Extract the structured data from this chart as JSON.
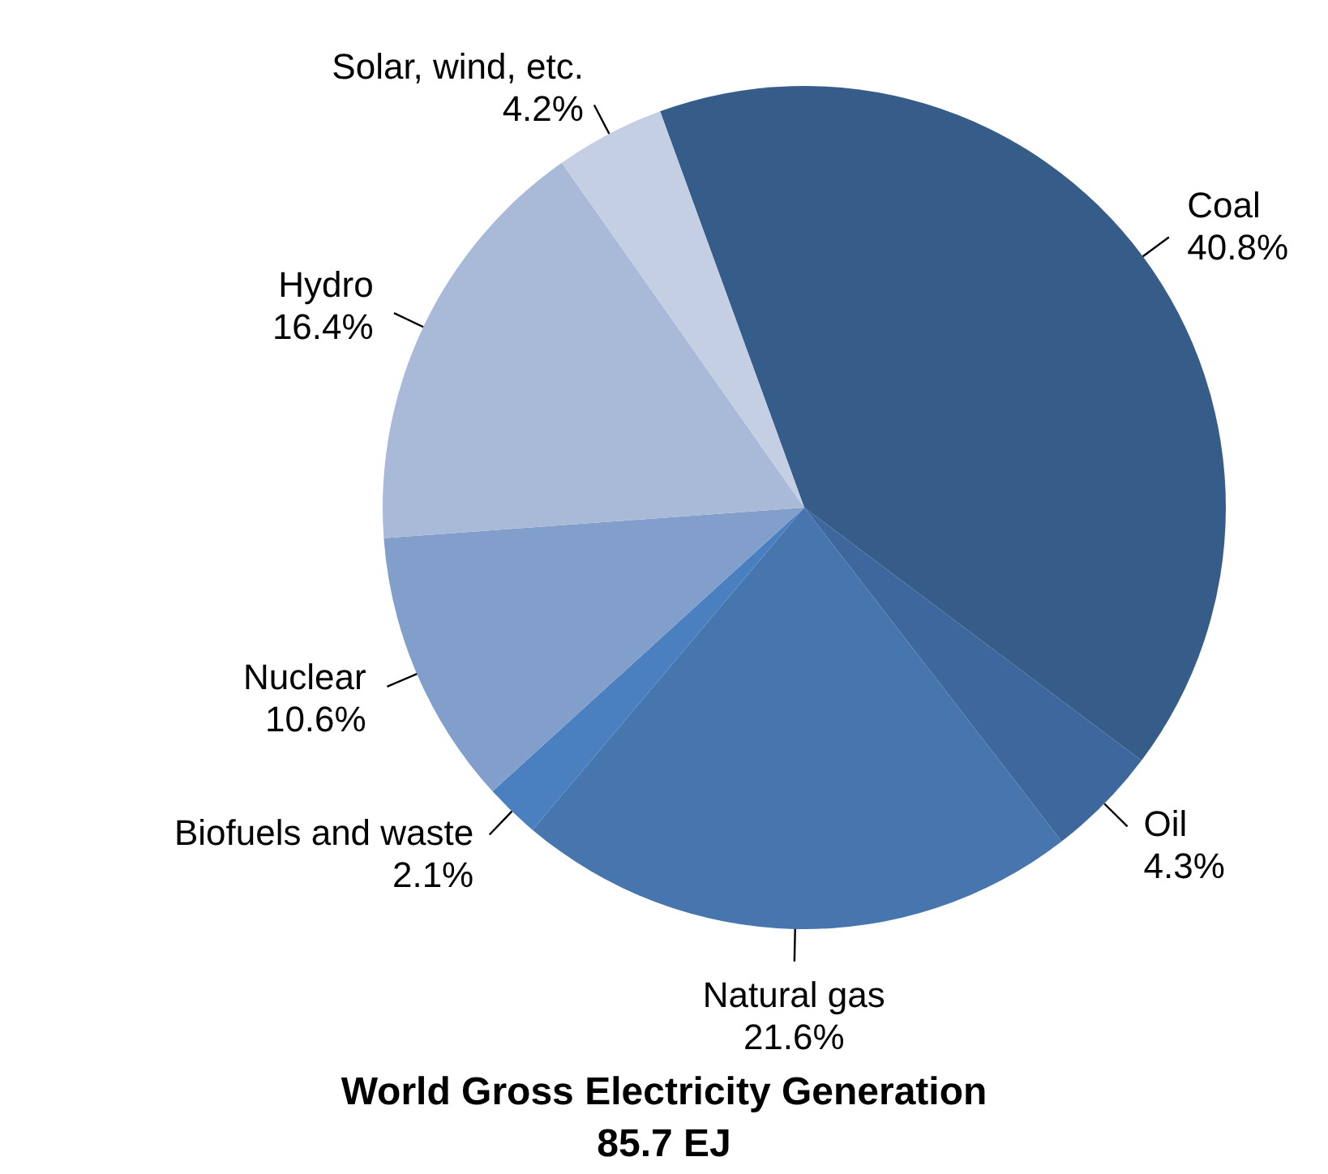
{
  "chart_data": {
    "type": "pie",
    "title": "World Gross Electricity Generation",
    "subtitle": "85.7 EJ",
    "categories": [
      "Coal",
      "Oil",
      "Natural gas",
      "Biofuels and waste",
      "Nuclear",
      "Hydro",
      "Solar, wind, etc."
    ],
    "values": [
      40.8,
      4.3,
      21.6,
      2.1,
      10.6,
      16.4,
      4.2
    ],
    "value_labels": [
      "40.8%",
      "4.3%",
      "21.6%",
      "2.1%",
      "10.6%",
      "16.4%",
      "4.2%"
    ],
    "colors": [
      "#365c8a",
      "#3e679d",
      "#4775ad",
      "#4a7fc0",
      "#829fcc",
      "#a9b9d8",
      "#c4cfe3"
    ],
    "legend": false
  }
}
